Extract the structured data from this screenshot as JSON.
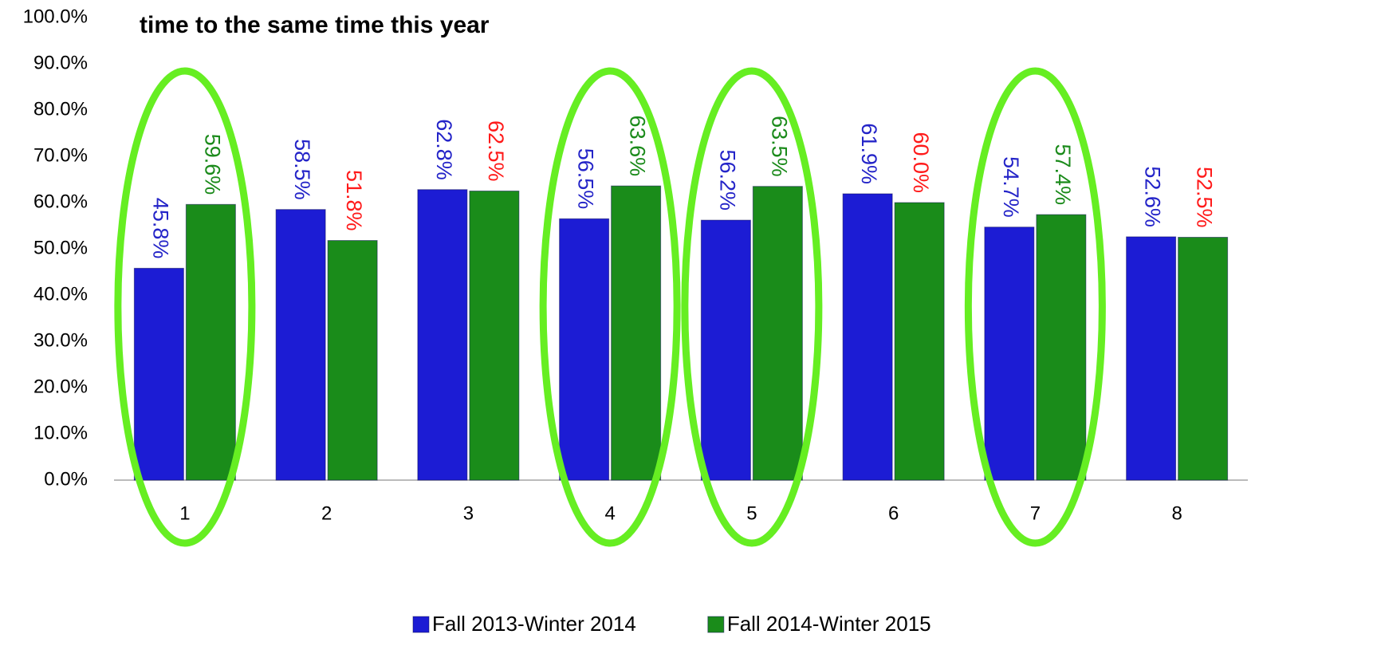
{
  "chart_data": {
    "type": "bar",
    "title": "time to the same time this year",
    "categories": [
      "1",
      "2",
      "3",
      "4",
      "5",
      "6",
      "7",
      "8"
    ],
    "series": [
      {
        "name": "Fall 2013-Winter 2014",
        "color": "#1c1cd4",
        "values": [
          45.8,
          58.5,
          62.8,
          56.5,
          56.2,
          61.9,
          54.7,
          52.6
        ],
        "value_labels": [
          "45.8%",
          "58.5%",
          "62.8%",
          "56.5%",
          "56.2%",
          "61.9%",
          "54.7%",
          "52.6%"
        ],
        "label_colors": [
          "#2424c8",
          "#2424c8",
          "#2424c8",
          "#2424c8",
          "#2424c8",
          "#2424c8",
          "#2424c8",
          "#2424c8"
        ]
      },
      {
        "name": "Fall 2014-Winter 2015",
        "color": "#1a8c1a",
        "values": [
          59.6,
          51.8,
          62.5,
          63.6,
          63.5,
          60.0,
          57.4,
          52.5
        ],
        "value_labels": [
          "59.6%",
          "51.8%",
          "62.5%",
          "63.6%",
          "63.5%",
          "60.0%",
          "57.4%",
          "52.5%"
        ],
        "label_colors": [
          "#1a8a1a",
          "#ff1a1a",
          "#ff1a1a",
          "#1a8a1a",
          "#1a8a1a",
          "#ff1a1a",
          "#1a8a1a",
          "#ff1a1a"
        ]
      }
    ],
    "ylim": [
      0,
      100
    ],
    "yticks": [
      {
        "value": 0,
        "label": "0.0%"
      },
      {
        "value": 10,
        "label": "10.0%"
      },
      {
        "value": 20,
        "label": "20.0%"
      },
      {
        "value": 30,
        "label": "30.0%"
      },
      {
        "value": 40,
        "label": "40.0%"
      },
      {
        "value": 50,
        "label": "50.0%"
      },
      {
        "value": 60,
        "label": "60.0%"
      },
      {
        "value": 70,
        "label": "70.0%"
      },
      {
        "value": 80,
        "label": "80.0%"
      },
      {
        "value": 90,
        "label": "90.0%"
      },
      {
        "value": 100,
        "label": "100.0%"
      }
    ],
    "grid": false,
    "legend": "bottom"
  }
}
